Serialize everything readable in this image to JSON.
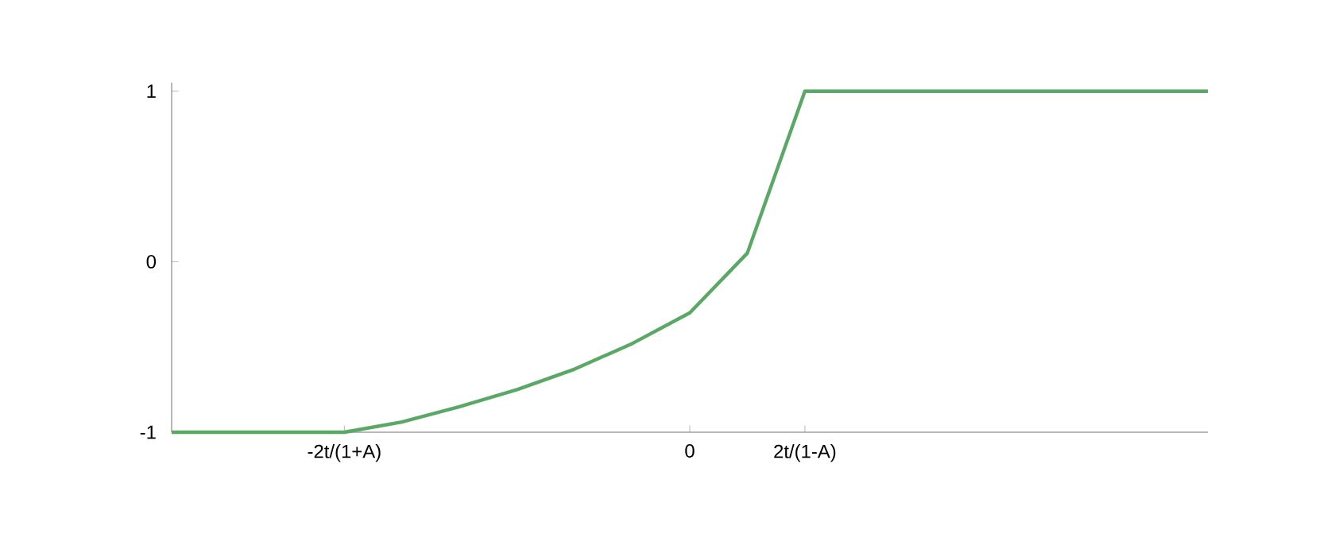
{
  "chart_data": {
    "type": "line",
    "categories": [
      null,
      null,
      null,
      "-2t/(1+A)",
      null,
      null,
      null,
      null,
      null,
      "0",
      null,
      "2t/(1-A)",
      null,
      null,
      null,
      null,
      null,
      null,
      null
    ],
    "series": [
      {
        "color": "#5aa866",
        "values": [
          -1,
          -1,
          -1,
          -1,
          -0.94,
          -0.85,
          -0.75,
          -0.63,
          -0.48,
          -0.3,
          0.05,
          1,
          1,
          1,
          1,
          1,
          1,
          1,
          1
        ]
      }
    ],
    "ylim": [
      -1,
      1.05
    ],
    "yticks": [
      -1,
      0,
      1
    ],
    "grid": false,
    "marker": "none",
    "line_style": "solid"
  }
}
